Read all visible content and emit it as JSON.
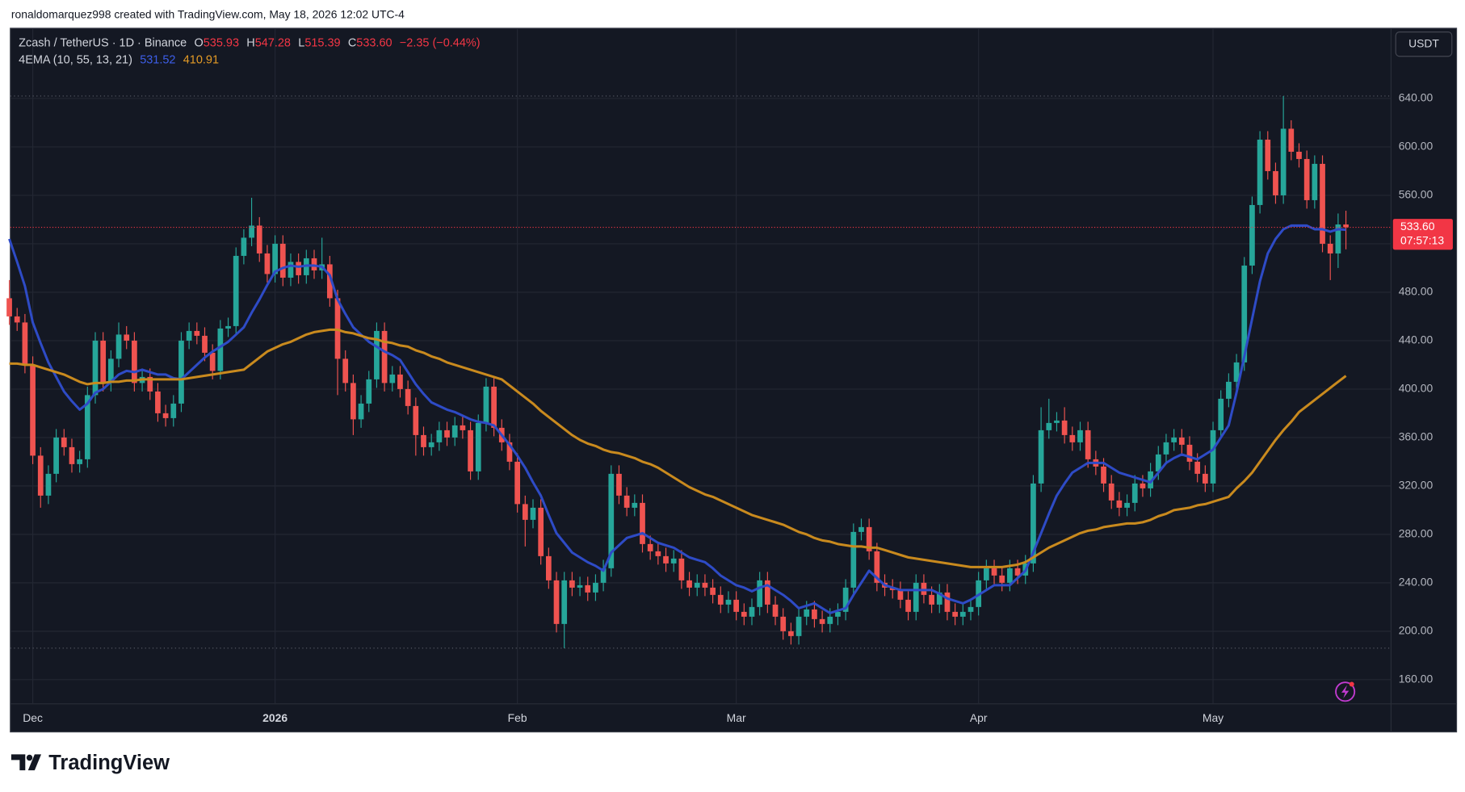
{
  "page": {
    "header": "ronaldomarquez998 created with TradingView.com, May 18, 2026 12:02 UTC-4",
    "brand": "TradingView"
  },
  "chart_data": {
    "type": "candlestick",
    "title": "Zcash / TetherUS · 1D · Binance",
    "ohlc_keys": [
      "O",
      "H",
      "L",
      "C"
    ],
    "last_close_label": "533.60",
    "change": "−2.35 (−0.44%)",
    "indicator": "4EMA (10, 55, 13, 21)",
    "currency": "USDT",
    "countdown": "07:57:13",
    "up_color": "#26a69a",
    "down_color": "#ef5350",
    "price_label_color": "#f23645",
    "ylim": [
      140,
      698
    ],
    "yticks": [
      {
        "value": 160,
        "label": "160.00"
      },
      {
        "value": 200,
        "label": "200.00"
      },
      {
        "value": 240,
        "label": "240.00"
      },
      {
        "value": 280,
        "label": "280.00"
      },
      {
        "value": 320,
        "label": "320.00"
      },
      {
        "value": 360,
        "label": "360.00"
      },
      {
        "value": 400,
        "label": "400.00"
      },
      {
        "value": 440,
        "label": "440.00"
      },
      {
        "value": 480,
        "label": "480.00"
      },
      {
        "value": 520,
        "label": "520.00"
      },
      {
        "value": 560,
        "label": "560.00"
      },
      {
        "value": 600,
        "label": "600.00"
      },
      {
        "value": 640,
        "label": "640.00"
      }
    ],
    "grid": true,
    "categories": [
      null,
      null,
      null,
      "Dec",
      null,
      null,
      null,
      null,
      null,
      null,
      null,
      null,
      null,
      null,
      null,
      null,
      null,
      null,
      null,
      null,
      null,
      null,
      null,
      null,
      null,
      null,
      null,
      null,
      null,
      null,
      null,
      null,
      null,
      null,
      "2026",
      null,
      null,
      null,
      null,
      null,
      null,
      null,
      null,
      null,
      null,
      null,
      null,
      null,
      null,
      null,
      null,
      null,
      null,
      null,
      null,
      null,
      null,
      null,
      null,
      null,
      null,
      null,
      null,
      null,
      null,
      "Feb",
      null,
      null,
      null,
      null,
      null,
      null,
      null,
      null,
      null,
      null,
      null,
      null,
      null,
      null,
      null,
      null,
      null,
      null,
      null,
      null,
      null,
      null,
      null,
      null,
      null,
      null,
      null,
      "Mar",
      null,
      null,
      null,
      null,
      null,
      null,
      null,
      null,
      null,
      null,
      null,
      null,
      null,
      null,
      null,
      null,
      null,
      null,
      null,
      null,
      null,
      null,
      null,
      null,
      null,
      null,
      null,
      null,
      null,
      null,
      "Apr",
      null,
      null,
      null,
      null,
      null,
      null,
      null,
      null,
      null,
      null,
      null,
      null,
      null,
      null,
      null,
      null,
      null,
      null,
      null,
      null,
      null,
      null,
      null,
      null,
      null,
      null,
      null,
      null,
      null,
      "May",
      null,
      null,
      null,
      null,
      null,
      null,
      null,
      null,
      null,
      null,
      null,
      null,
      null,
      null,
      null,
      null,
      null
    ],
    "open": [
      475,
      460,
      455,
      420,
      345,
      312,
      330,
      360,
      352,
      338,
      342,
      395,
      440,
      405,
      425,
      445,
      440,
      405,
      410,
      398,
      380,
      376,
      388,
      440,
      448,
      444,
      430,
      415,
      450,
      452,
      510,
      525,
      535,
      512,
      495,
      520,
      492,
      505,
      494,
      508,
      498,
      503,
      475,
      425,
      405,
      375,
      388,
      408,
      448,
      405,
      412,
      400,
      386,
      362,
      352,
      356,
      366,
      360,
      370,
      366,
      332,
      372,
      402,
      368,
      356,
      340,
      305,
      292,
      302,
      262,
      242,
      206,
      242,
      236,
      238,
      232,
      240,
      252,
      330,
      312,
      302,
      306,
      272,
      266,
      262,
      256,
      260,
      242,
      236,
      240,
      236,
      230,
      222,
      226,
      216,
      212,
      220,
      242,
      222,
      212,
      200,
      196,
      212,
      218,
      210,
      206,
      212,
      216,
      236,
      282,
      286,
      266,
      240,
      236,
      234,
      226,
      216,
      240,
      230,
      222,
      232,
      216,
      212,
      216,
      220,
      242,
      252,
      246,
      240,
      252,
      246,
      256,
      322,
      366,
      372,
      374,
      362,
      356,
      366,
      342,
      336,
      322,
      308,
      302,
      306,
      322,
      318,
      332,
      346,
      356,
      360,
      354,
      340,
      330,
      322,
      366,
      392,
      406,
      422,
      502,
      552,
      606,
      580,
      560,
      615,
      596,
      590,
      556,
      586,
      520,
      512,
      535.93
    ],
    "high": [
      490,
      467,
      462,
      427,
      352,
      337,
      367,
      367,
      359,
      349,
      402,
      447,
      447,
      432,
      455,
      452,
      447,
      417,
      417,
      405,
      387,
      395,
      447,
      455,
      455,
      451,
      437,
      457,
      459,
      517,
      532,
      558,
      542,
      519,
      527,
      527,
      512,
      512,
      515,
      515,
      525,
      510,
      482,
      432,
      412,
      395,
      415,
      455,
      455,
      419,
      419,
      407,
      393,
      369,
      363,
      373,
      373,
      377,
      377,
      373,
      379,
      409,
      409,
      375,
      363,
      347,
      312,
      309,
      309,
      269,
      249,
      249,
      249,
      245,
      245,
      247,
      259,
      337,
      337,
      319,
      313,
      313,
      279,
      273,
      269,
      267,
      267,
      249,
      247,
      247,
      243,
      237,
      233,
      233,
      223,
      227,
      249,
      249,
      229,
      219,
      207,
      219,
      225,
      225,
      217,
      219,
      223,
      243,
      289,
      293,
      293,
      273,
      247,
      243,
      241,
      233,
      247,
      247,
      237,
      239,
      239,
      223,
      223,
      227,
      249,
      259,
      259,
      253,
      259,
      259,
      263,
      329,
      385,
      392,
      381,
      385,
      369,
      373,
      373,
      349,
      343,
      329,
      315,
      313,
      329,
      329,
      339,
      353,
      363,
      367,
      367,
      361,
      347,
      337,
      373,
      399,
      413,
      429,
      509,
      559,
      613,
      613,
      587,
      642,
      622,
      603,
      597,
      593,
      593,
      527,
      545,
      547.28
    ],
    "low": [
      453,
      448,
      413,
      338,
      302,
      305,
      323,
      345,
      331,
      331,
      335,
      388,
      398,
      398,
      418,
      433,
      398,
      398,
      391,
      373,
      369,
      369,
      381,
      433,
      437,
      423,
      408,
      408,
      443,
      445,
      503,
      518,
      505,
      488,
      488,
      485,
      485,
      487,
      487,
      491,
      491,
      468,
      395,
      398,
      362,
      368,
      381,
      401,
      398,
      398,
      393,
      379,
      345,
      345,
      345,
      349,
      353,
      353,
      359,
      325,
      325,
      365,
      361,
      349,
      333,
      298,
      270,
      285,
      255,
      235,
      199,
      186,
      229,
      229,
      225,
      225,
      233,
      245,
      305,
      295,
      295,
      265,
      259,
      255,
      249,
      249,
      235,
      229,
      229,
      229,
      223,
      215,
      215,
      209,
      205,
      205,
      213,
      215,
      205,
      193,
      189,
      189,
      205,
      203,
      199,
      199,
      205,
      209,
      229,
      275,
      259,
      233,
      229,
      227,
      219,
      209,
      209,
      223,
      215,
      215,
      209,
      205,
      205,
      209,
      213,
      235,
      239,
      233,
      233,
      239,
      239,
      249,
      315,
      359,
      365,
      355,
      349,
      349,
      335,
      329,
      315,
      301,
      295,
      295,
      299,
      311,
      311,
      325,
      339,
      349,
      347,
      333,
      323,
      315,
      315,
      359,
      385,
      399,
      415,
      495,
      545,
      573,
      553,
      553,
      589,
      583,
      549,
      549,
      513,
      490,
      500,
      515.39
    ],
    "close": [
      460,
      455,
      420,
      345,
      312,
      330,
      360,
      352,
      338,
      342,
      395,
      440,
      405,
      425,
      445,
      440,
      405,
      410,
      398,
      380,
      376,
      388,
      440,
      448,
      444,
      430,
      415,
      450,
      452,
      510,
      525,
      535,
      512,
      495,
      520,
      492,
      505,
      494,
      508,
      498,
      503,
      475,
      425,
      405,
      375,
      388,
      408,
      448,
      405,
      412,
      400,
      386,
      362,
      352,
      356,
      366,
      360,
      370,
      366,
      332,
      372,
      402,
      368,
      356,
      340,
      305,
      292,
      302,
      262,
      242,
      206,
      242,
      236,
      238,
      232,
      240,
      252,
      330,
      312,
      302,
      306,
      272,
      266,
      262,
      256,
      260,
      242,
      236,
      240,
      236,
      230,
      222,
      226,
      216,
      212,
      220,
      242,
      222,
      212,
      200,
      196,
      212,
      218,
      210,
      206,
      212,
      216,
      236,
      282,
      286,
      266,
      240,
      236,
      234,
      226,
      216,
      240,
      230,
      222,
      232,
      216,
      212,
      216,
      220,
      242,
      252,
      246,
      240,
      252,
      246,
      256,
      322,
      366,
      372,
      374,
      362,
      356,
      366,
      342,
      336,
      322,
      308,
      302,
      306,
      322,
      318,
      332,
      346,
      356,
      360,
      354,
      340,
      330,
      322,
      366,
      392,
      406,
      422,
      502,
      552,
      606,
      580,
      560,
      615,
      596,
      590,
      556,
      586,
      520,
      512,
      535.93,
      533.6
    ],
    "series": [
      {
        "color": "#2e4bc6",
        "values": [
          524,
          505,
          485,
          455,
          438,
          422,
          410,
          398,
          390,
          383,
          388,
          397,
          400,
          406,
          412,
          415,
          414,
          416,
          414,
          412,
          412,
          409,
          408,
          414,
          420,
          426,
          431,
          435,
          439,
          445,
          451,
          463,
          474,
          486,
          497,
          500,
          502,
          501,
          502,
          502,
          501,
          494,
          474,
          462,
          451,
          445,
          439,
          435,
          431,
          428,
          424,
          414,
          404,
          396,
          389,
          386,
          383,
          381,
          378,
          375,
          373,
          372,
          370,
          362,
          354,
          345,
          335,
          323,
          312,
          296,
          281,
          273,
          265,
          261,
          257,
          254,
          250,
          265,
          271,
          277,
          279,
          281,
          277,
          273,
          271,
          269,
          265,
          261,
          259,
          257,
          252,
          246,
          242,
          238,
          236,
          233,
          236,
          238,
          234,
          230,
          225,
          219,
          221,
          223,
          219,
          215,
          217,
          219,
          230,
          240,
          250,
          244,
          238,
          236,
          234,
          234,
          234,
          234,
          234,
          231,
          227,
          225,
          223,
          226,
          230,
          234,
          238,
          238,
          238,
          244,
          250,
          265,
          281,
          297,
          312,
          322,
          331,
          335,
          339,
          339,
          339,
          335,
          331,
          329,
          327,
          325,
          323,
          331,
          339,
          343,
          346,
          344,
          342,
          346,
          350,
          360,
          370,
          397,
          427,
          458,
          489,
          512,
          524,
          532,
          535,
          535,
          535,
          532,
          532,
          530,
          532,
          531.52
        ]
      },
      {
        "color": "#c98a1e",
        "values": [
          421,
          421,
          420,
          420,
          418,
          416,
          414,
          412,
          409,
          406,
          404,
          405,
          405,
          406,
          406,
          407,
          407,
          408,
          408,
          408,
          408,
          408,
          408,
          409,
          410,
          411,
          412,
          413,
          414,
          415,
          416,
          421,
          426,
          431,
          434,
          437,
          439,
          442,
          445,
          447,
          448,
          449,
          449,
          447,
          446,
          444,
          442,
          441,
          439,
          438,
          436,
          435,
          432,
          430,
          427,
          425,
          422,
          420,
          418,
          416,
          414,
          412,
          410,
          408,
          403,
          398,
          393,
          388,
          382,
          377,
          372,
          367,
          362,
          358,
          355,
          353,
          350,
          348,
          347,
          345,
          343,
          340,
          338,
          335,
          331,
          327,
          323,
          319,
          316,
          313,
          311,
          308,
          305,
          302,
          299,
          296,
          294,
          292,
          290,
          288,
          285,
          282,
          280,
          277,
          275,
          274,
          272,
          271,
          270,
          270,
          269,
          269,
          267,
          265,
          263,
          261,
          260,
          259,
          258,
          257,
          256,
          255,
          254,
          253,
          253,
          253,
          253,
          253,
          254,
          255,
          257,
          261,
          265,
          269,
          272,
          275,
          278,
          281,
          283,
          284,
          286,
          287,
          288,
          289,
          289,
          290,
          292,
          295,
          297,
          300,
          301,
          302,
          304,
          305,
          307,
          309,
          311,
          318,
          324,
          331,
          340,
          349,
          358,
          366,
          373,
          381,
          386,
          391,
          396,
          401,
          406,
          410.91
        ]
      }
    ]
  }
}
